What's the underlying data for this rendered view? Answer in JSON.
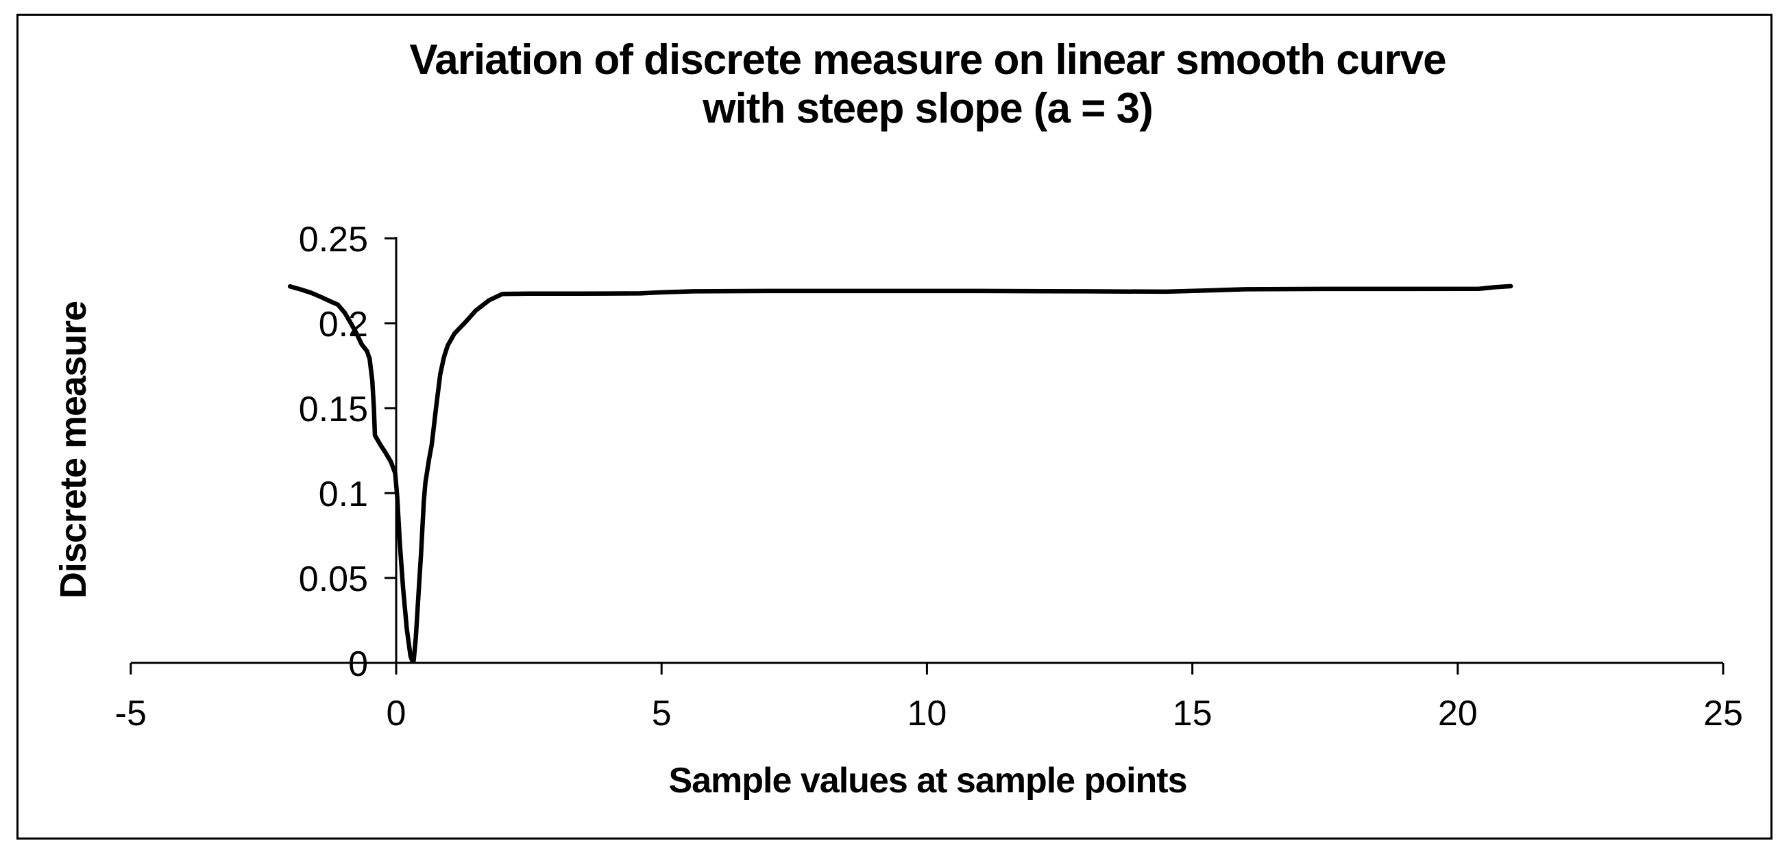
{
  "chart_data": {
    "type": "line",
    "title": "Variation of discrete measure on linear smooth curve with steep slope (a = 3)",
    "title_lines": [
      "Variation of discrete measure on linear smooth curve",
      "with steep slope (a = 3)"
    ],
    "xlabel": "Sample values at sample points",
    "ylabel": "Discrete measure",
    "xlim": [
      -5,
      25
    ],
    "ylim": [
      0,
      0.25
    ],
    "x_ticks": [
      -5,
      0,
      5,
      10,
      15,
      20,
      25
    ],
    "x_tick_labels": [
      "-5",
      "0",
      "5",
      "10",
      "15",
      "20",
      "25"
    ],
    "y_ticks": [
      0,
      0.05,
      0.1,
      0.15,
      0.2,
      0.25
    ],
    "y_tick_labels": [
      "0",
      "0.05",
      "0.1",
      "0.15",
      "0.2",
      "0.25"
    ],
    "grid": false,
    "legend": "none",
    "line_color": "#000000",
    "background": "#ffffff",
    "series": [
      {
        "name": "Discrete measure",
        "points": [
          [
            -2.0,
            0.2217
          ],
          [
            -1.8,
            0.2199
          ],
          [
            -1.6,
            0.2179
          ],
          [
            -1.4,
            0.2152
          ],
          [
            -1.2,
            0.2123
          ],
          [
            -1.1,
            0.211
          ],
          [
            -0.97,
            0.2062
          ],
          [
            -0.85,
            0.1998
          ],
          [
            -0.75,
            0.1942
          ],
          [
            -0.65,
            0.1876
          ],
          [
            -0.55,
            0.1836
          ],
          [
            -0.5,
            0.179
          ],
          [
            -0.45,
            0.166
          ],
          [
            -0.42,
            0.15
          ],
          [
            -0.4,
            0.134
          ],
          [
            -0.3,
            0.1285
          ],
          [
            -0.2,
            0.1238
          ],
          [
            -0.1,
            0.1184
          ],
          [
            -0.02,
            0.1118
          ],
          [
            0.02,
            0.098
          ],
          [
            0.07,
            0.07
          ],
          [
            0.13,
            0.044
          ],
          [
            0.2,
            0.02
          ],
          [
            0.27,
            0.004
          ],
          [
            0.3,
            0.0015
          ],
          [
            0.33,
            0.0015
          ],
          [
            0.37,
            0.015
          ],
          [
            0.42,
            0.04
          ],
          [
            0.47,
            0.065
          ],
          [
            0.52,
            0.095
          ],
          [
            0.55,
            0.106
          ],
          [
            0.62,
            0.12
          ],
          [
            0.67,
            0.1285
          ],
          [
            0.75,
            0.15
          ],
          [
            0.83,
            0.17
          ],
          [
            0.9,
            0.18
          ],
          [
            0.97,
            0.1868
          ],
          [
            1.1,
            0.194
          ],
          [
            1.3,
            0.2005
          ],
          [
            1.5,
            0.2075
          ],
          [
            1.75,
            0.2135
          ],
          [
            2.0,
            0.2172
          ],
          [
            2.5,
            0.2174
          ],
          [
            3.5,
            0.2174
          ],
          [
            4.6,
            0.2176
          ],
          [
            5.0,
            0.2182
          ],
          [
            5.6,
            0.2188
          ],
          [
            7.0,
            0.219
          ],
          [
            9.0,
            0.219
          ],
          [
            11.0,
            0.219
          ],
          [
            13.0,
            0.2188
          ],
          [
            14.5,
            0.2186
          ],
          [
            15.2,
            0.2192
          ],
          [
            16.0,
            0.22
          ],
          [
            17.5,
            0.2202
          ],
          [
            19.0,
            0.2202
          ],
          [
            20.4,
            0.2203
          ],
          [
            20.7,
            0.2212
          ],
          [
            21.0,
            0.2218
          ]
        ]
      }
    ]
  }
}
